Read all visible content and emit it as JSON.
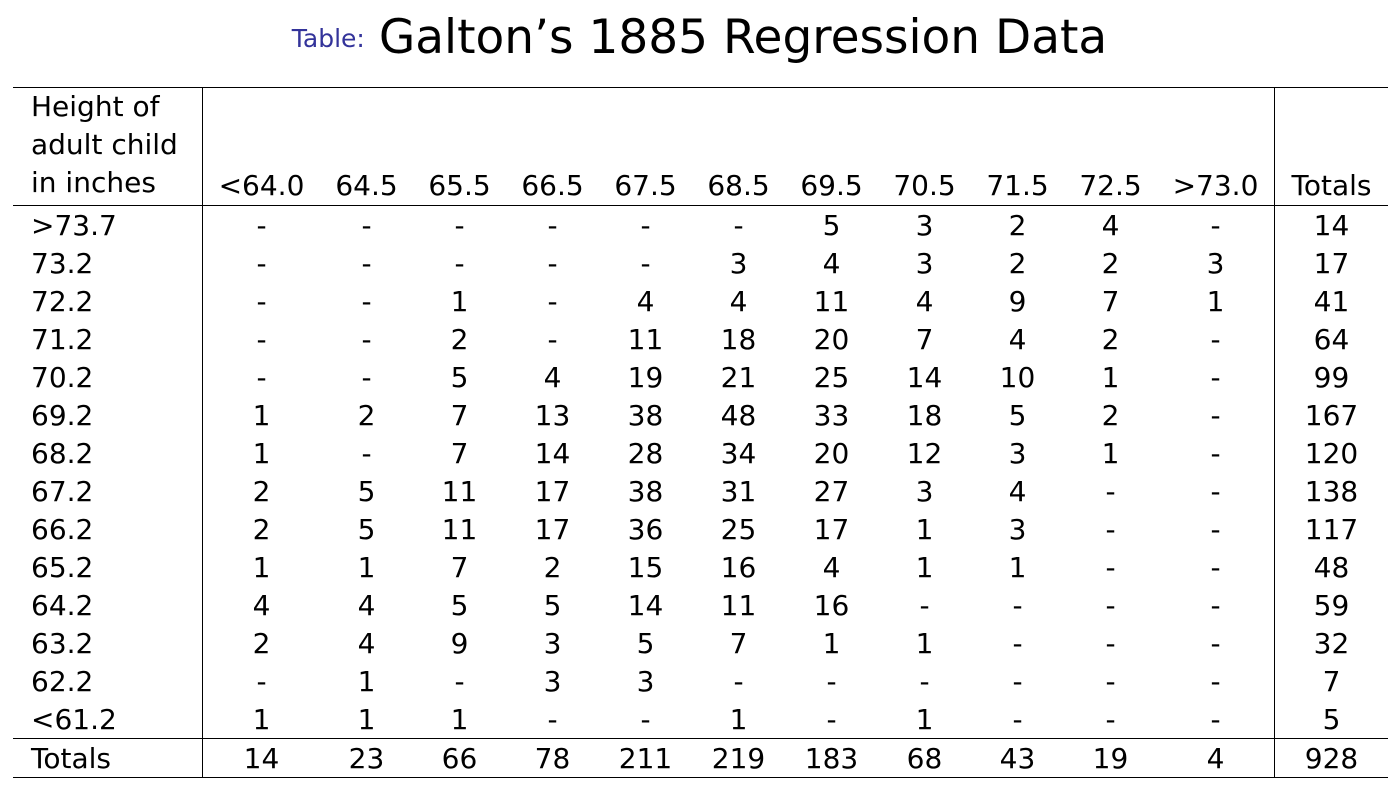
{
  "caption": {
    "label": "Table:",
    "title": "Galton’s 1885 Regression Data"
  },
  "table": {
    "row_header": [
      "Height of",
      "adult child",
      "in inches"
    ],
    "columns": [
      "<64.0",
      "64.5",
      "65.5",
      "66.5",
      "67.5",
      "68.5",
      "69.5",
      "70.5",
      "71.5",
      "72.5",
      ">73.0"
    ],
    "totals_header": "Totals",
    "rows": [
      {
        "label": ">73.7",
        "cells": [
          "-",
          "-",
          "-",
          "-",
          "-",
          "-",
          "5",
          "3",
          "2",
          "4",
          "-"
        ],
        "total": "14"
      },
      {
        "label": "73.2",
        "cells": [
          "-",
          "-",
          "-",
          "-",
          "-",
          "3",
          "4",
          "3",
          "2",
          "2",
          "3"
        ],
        "total": "17"
      },
      {
        "label": "72.2",
        "cells": [
          "-",
          "-",
          "1",
          "-",
          "4",
          "4",
          "11",
          "4",
          "9",
          "7",
          "1"
        ],
        "total": "41"
      },
      {
        "label": "71.2",
        "cells": [
          "-",
          "-",
          "2",
          "-",
          "11",
          "18",
          "20",
          "7",
          "4",
          "2",
          "-"
        ],
        "total": "64"
      },
      {
        "label": "70.2",
        "cells": [
          "-",
          "-",
          "5",
          "4",
          "19",
          "21",
          "25",
          "14",
          "10",
          "1",
          "-"
        ],
        "total": "99"
      },
      {
        "label": "69.2",
        "cells": [
          "1",
          "2",
          "7",
          "13",
          "38",
          "48",
          "33",
          "18",
          "5",
          "2",
          "-"
        ],
        "total": "167"
      },
      {
        "label": "68.2",
        "cells": [
          "1",
          "-",
          "7",
          "14",
          "28",
          "34",
          "20",
          "12",
          "3",
          "1",
          "-"
        ],
        "total": "120"
      },
      {
        "label": "67.2",
        "cells": [
          "2",
          "5",
          "11",
          "17",
          "38",
          "31",
          "27",
          "3",
          "4",
          "-",
          "-"
        ],
        "total": "138"
      },
      {
        "label": "66.2",
        "cells": [
          "2",
          "5",
          "11",
          "17",
          "36",
          "25",
          "17",
          "1",
          "3",
          "-",
          "-"
        ],
        "total": "117"
      },
      {
        "label": "65.2",
        "cells": [
          "1",
          "1",
          "7",
          "2",
          "15",
          "16",
          "4",
          "1",
          "1",
          "-",
          "-"
        ],
        "total": "48"
      },
      {
        "label": "64.2",
        "cells": [
          "4",
          "4",
          "5",
          "5",
          "14",
          "11",
          "16",
          "-",
          "-",
          "-",
          "-"
        ],
        "total": "59"
      },
      {
        "label": "63.2",
        "cells": [
          "2",
          "4",
          "9",
          "3",
          "5",
          "7",
          "1",
          "1",
          "-",
          "-",
          "-"
        ],
        "total": "32"
      },
      {
        "label": "62.2",
        "cells": [
          "-",
          "1",
          "-",
          "3",
          "3",
          "-",
          "-",
          "-",
          "-",
          "-",
          "-"
        ],
        "total": "7"
      },
      {
        "label": "<61.2",
        "cells": [
          "1",
          "1",
          "1",
          "-",
          "-",
          "1",
          "-",
          "1",
          "-",
          "-",
          "-"
        ],
        "total": "5"
      }
    ],
    "totals_row": {
      "label": "Totals",
      "cells": [
        "14",
        "23",
        "66",
        "78",
        "211",
        "219",
        "183",
        "68",
        "43",
        "19",
        "4"
      ],
      "total": "928"
    }
  }
}
